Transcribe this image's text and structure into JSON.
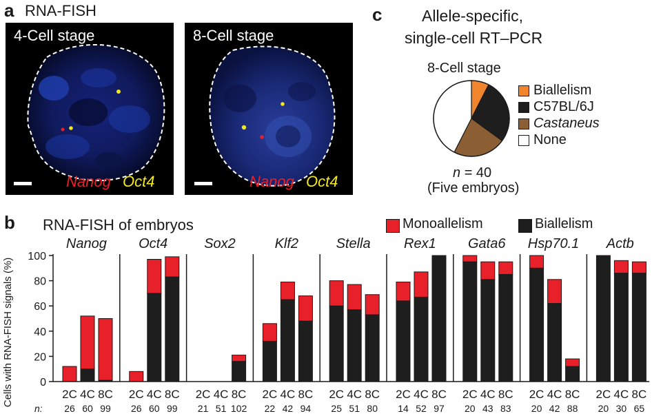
{
  "panel_a": {
    "label": "a",
    "title": "RNA-FISH",
    "images": [
      {
        "stage": "4-Cell stage",
        "gene1": "Nanog",
        "gene2": "Oct4"
      },
      {
        "stage": "8-Cell stage",
        "gene1": "Nanog",
        "gene2": "Oct4"
      }
    ],
    "colors": {
      "nanog": "#e8202a",
      "oct4": "#f2e81c",
      "nucleus": "#1a3aa8"
    }
  },
  "panel_c": {
    "label": "c",
    "title_line1": "Allele-specific,",
    "title_line2": "single-cell RT–PCR",
    "stage": "8-Cell stage",
    "n_label": "n",
    "n_value": "= 40",
    "subnote": "(Five embryos)",
    "legend": [
      {
        "name": "Biallelism",
        "color": "#f0852d"
      },
      {
        "name": "C57BL/6J",
        "color": "#1e1e1e"
      },
      {
        "name": "Castaneus",
        "color": "#8b5e34",
        "italic": true
      },
      {
        "name": "None",
        "color": "#ffffff"
      }
    ],
    "chart_data": {
      "type": "pie",
      "labels": [
        "Biallelism",
        "C57BL/6J",
        "Castaneus",
        "None"
      ],
      "values": [
        3,
        11,
        9,
        17
      ]
    }
  },
  "panel_b": {
    "label": "b",
    "title": "RNA-FISH of embryos",
    "legend": [
      {
        "name": "Monoallelism",
        "color": "#e8202a"
      },
      {
        "name": "Biallelism",
        "color": "#1e1e1e"
      }
    ],
    "n_prefix": "n:",
    "chart_data": {
      "type": "bar",
      "stacked": true,
      "ylabel": "Cells with RNA-FISH signals (%)",
      "ylim": [
        0,
        100
      ],
      "yticks": [
        0,
        20,
        40,
        60,
        80,
        100
      ],
      "categories": [
        "2C",
        "4C",
        "8C"
      ],
      "genes": [
        {
          "name": "Nanog",
          "biallelism": [
            0,
            10,
            1
          ],
          "monoallelism": [
            12,
            42,
            49
          ],
          "n": [
            "26",
            "60",
            "99"
          ]
        },
        {
          "name": "Oct4",
          "biallelism": [
            0,
            70,
            83
          ],
          "monoallelism": [
            8,
            27,
            16
          ],
          "n": [
            "26",
            "60",
            "99"
          ]
        },
        {
          "name": "Sox2",
          "biallelism": [
            0,
            0,
            16
          ],
          "monoallelism": [
            0,
            0,
            5
          ],
          "n": [
            "21",
            "51",
            "102"
          ]
        },
        {
          "name": "Klf2",
          "biallelism": [
            32,
            65,
            48
          ],
          "monoallelism": [
            14,
            14,
            20
          ],
          "n": [
            "22",
            "42",
            "94"
          ]
        },
        {
          "name": "Stella",
          "biallelism": [
            60,
            57,
            53
          ],
          "monoallelism": [
            20,
            20,
            16
          ],
          "n": [
            "25",
            "51",
            "80"
          ]
        },
        {
          "name": "Rex1",
          "biallelism": [
            64,
            67,
            100
          ],
          "monoallelism": [
            15,
            20,
            0
          ],
          "n": [
            "14",
            "52",
            "97"
          ]
        },
        {
          "name": "Gata6",
          "biallelism": [
            95,
            81,
            85
          ],
          "monoallelism": [
            5,
            14,
            10
          ],
          "n": [
            "20",
            "43",
            "83"
          ]
        },
        {
          "name": "Hsp70.1",
          "biallelism": [
            90,
            62,
            12
          ],
          "monoallelism": [
            10,
            19,
            6
          ],
          "n": [
            "20",
            "42",
            "88"
          ]
        },
        {
          "name": "Actb",
          "biallelism": [
            100,
            86,
            86
          ],
          "monoallelism": [
            0,
            10,
            9
          ],
          "n": [
            "20",
            "30",
            "65"
          ]
        }
      ]
    }
  }
}
